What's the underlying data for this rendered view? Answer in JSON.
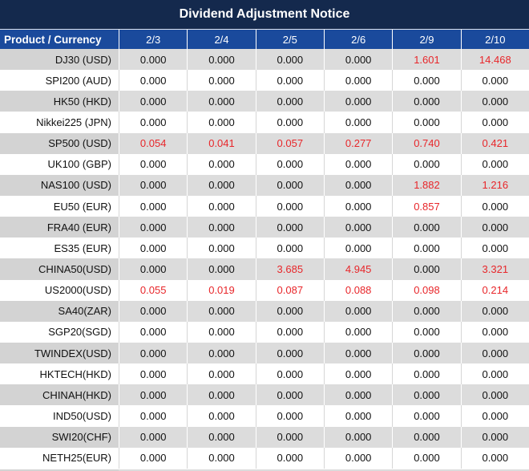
{
  "window": {
    "title": "Dividend Adjustment Notice"
  },
  "table": {
    "corner_label": "Product / Currency",
    "date_columns": [
      "2/3",
      "2/4",
      "2/5",
      "2/6",
      "2/9",
      "2/10"
    ],
    "rows": [
      {
        "product": "DJ30 (USD)",
        "values": [
          "0.000",
          "0.000",
          "0.000",
          "0.000",
          "1.601",
          "14.468"
        ],
        "red": [
          false,
          false,
          false,
          false,
          true,
          true
        ]
      },
      {
        "product": "SPI200 (AUD)",
        "values": [
          "0.000",
          "0.000",
          "0.000",
          "0.000",
          "0.000",
          "0.000"
        ],
        "red": [
          false,
          false,
          false,
          false,
          false,
          false
        ]
      },
      {
        "product": "HK50 (HKD)",
        "values": [
          "0.000",
          "0.000",
          "0.000",
          "0.000",
          "0.000",
          "0.000"
        ],
        "red": [
          false,
          false,
          false,
          false,
          false,
          false
        ]
      },
      {
        "product": "Nikkei225 (JPN)",
        "values": [
          "0.000",
          "0.000",
          "0.000",
          "0.000",
          "0.000",
          "0.000"
        ],
        "red": [
          false,
          false,
          false,
          false,
          false,
          false
        ]
      },
      {
        "product": "SP500 (USD)",
        "values": [
          "0.054",
          "0.041",
          "0.057",
          "0.277",
          "0.740",
          "0.421"
        ],
        "red": [
          true,
          true,
          true,
          true,
          true,
          true
        ]
      },
      {
        "product": "UK100 (GBP)",
        "values": [
          "0.000",
          "0.000",
          "0.000",
          "0.000",
          "0.000",
          "0.000"
        ],
        "red": [
          false,
          false,
          false,
          false,
          false,
          false
        ]
      },
      {
        "product": "NAS100 (USD)",
        "values": [
          "0.000",
          "0.000",
          "0.000",
          "0.000",
          "1.882",
          "1.216"
        ],
        "red": [
          false,
          false,
          false,
          false,
          true,
          true
        ]
      },
      {
        "product": "EU50 (EUR)",
        "values": [
          "0.000",
          "0.000",
          "0.000",
          "0.000",
          "0.857",
          "0.000"
        ],
        "red": [
          false,
          false,
          false,
          false,
          true,
          false
        ]
      },
      {
        "product": "FRA40 (EUR)",
        "values": [
          "0.000",
          "0.000",
          "0.000",
          "0.000",
          "0.000",
          "0.000"
        ],
        "red": [
          false,
          false,
          false,
          false,
          false,
          false
        ]
      },
      {
        "product": "ES35 (EUR)",
        "values": [
          "0.000",
          "0.000",
          "0.000",
          "0.000",
          "0.000",
          "0.000"
        ],
        "red": [
          false,
          false,
          false,
          false,
          false,
          false
        ]
      },
      {
        "product": "CHINA50(USD)",
        "values": [
          "0.000",
          "0.000",
          "3.685",
          "4.945",
          "0.000",
          "3.321"
        ],
        "red": [
          false,
          false,
          true,
          true,
          false,
          true
        ]
      },
      {
        "product": "US2000(USD)",
        "values": [
          "0.055",
          "0.019",
          "0.087",
          "0.088",
          "0.098",
          "0.214"
        ],
        "red": [
          true,
          true,
          true,
          true,
          true,
          true
        ]
      },
      {
        "product": "SA40(ZAR)",
        "values": [
          "0.000",
          "0.000",
          "0.000",
          "0.000",
          "0.000",
          "0.000"
        ],
        "red": [
          false,
          false,
          false,
          false,
          false,
          false
        ]
      },
      {
        "product": "SGP20(SGD)",
        "values": [
          "0.000",
          "0.000",
          "0.000",
          "0.000",
          "0.000",
          "0.000"
        ],
        "red": [
          false,
          false,
          false,
          false,
          false,
          false
        ]
      },
      {
        "product": "TWINDEX(USD)",
        "values": [
          "0.000",
          "0.000",
          "0.000",
          "0.000",
          "0.000",
          "0.000"
        ],
        "red": [
          false,
          false,
          false,
          false,
          false,
          false
        ]
      },
      {
        "product": "HKTECH(HKD)",
        "values": [
          "0.000",
          "0.000",
          "0.000",
          "0.000",
          "0.000",
          "0.000"
        ],
        "red": [
          false,
          false,
          false,
          false,
          false,
          false
        ]
      },
      {
        "product": "CHINAH(HKD)",
        "values": [
          "0.000",
          "0.000",
          "0.000",
          "0.000",
          "0.000",
          "0.000"
        ],
        "red": [
          false,
          false,
          false,
          false,
          false,
          false
        ]
      },
      {
        "product": "IND50(USD)",
        "values": [
          "0.000",
          "0.000",
          "0.000",
          "0.000",
          "0.000",
          "0.000"
        ],
        "red": [
          false,
          false,
          false,
          false,
          false,
          false
        ]
      },
      {
        "product": "SWI20(CHF)",
        "values": [
          "0.000",
          "0.000",
          "0.000",
          "0.000",
          "0.000",
          "0.000"
        ],
        "red": [
          false,
          false,
          false,
          false,
          false,
          false
        ]
      },
      {
        "product": "NETH25(EUR)",
        "values": [
          "0.000",
          "0.000",
          "0.000",
          "0.000",
          "0.000",
          "0.000"
        ],
        "red": [
          false,
          false,
          false,
          false,
          false,
          false
        ]
      }
    ]
  },
  "colors": {
    "title_bar_bg": "#14294d",
    "header_row_bg": "#1a4a9c",
    "header_text": "#ffffff",
    "row_stripe_bg": "#dcdcdc",
    "row_stripe_label_bg": "#d3d3d3",
    "value_text": "#111111",
    "highlight_red": "#e8262a"
  }
}
